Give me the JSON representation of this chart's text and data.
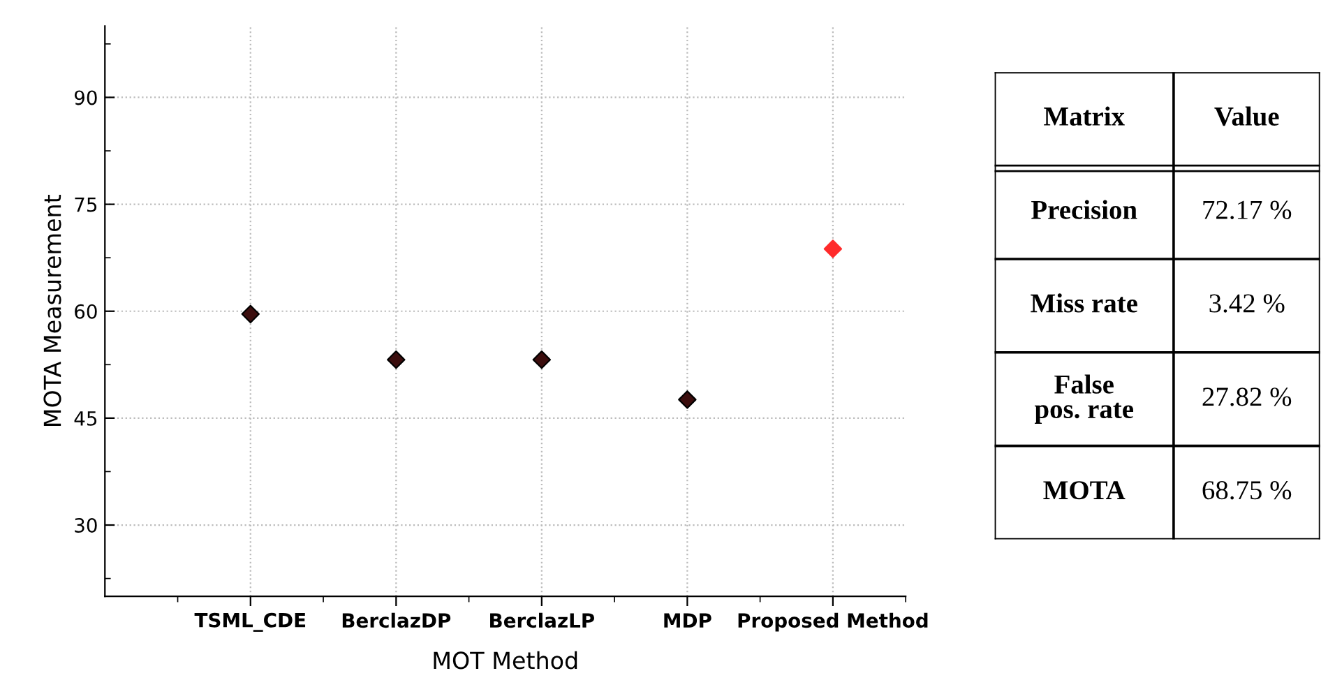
{
  "chart_data": [
    {
      "type": "scatter",
      "xlabel": "MOT Method",
      "ylabel": "MOTA Measurement",
      "categories": [
        "TSML_CDE",
        "BerclazDP",
        "BerclazLP",
        "MDP",
        "Proposed Method"
      ],
      "values": [
        59.6,
        53.2,
        53.2,
        47.6,
        68.75
      ],
      "colors": [
        "#3b0d0d",
        "#3b0d0d",
        "#3b0d0d",
        "#3b0d0d",
        "#ff2b2b"
      ],
      "ylim": [
        20,
        100
      ],
      "yticks": [
        30,
        45,
        60,
        75,
        90
      ],
      "grid": true,
      "marker": "diamond"
    },
    {
      "type": "other",
      "annotations": [
        "Matrix",
        "Value",
        "Precision",
        "72.17 %",
        "Miss rate",
        "3.42 %",
        "False\npos. rate",
        "27.82 %",
        "MOTA",
        "68.75 %"
      ]
    }
  ]
}
